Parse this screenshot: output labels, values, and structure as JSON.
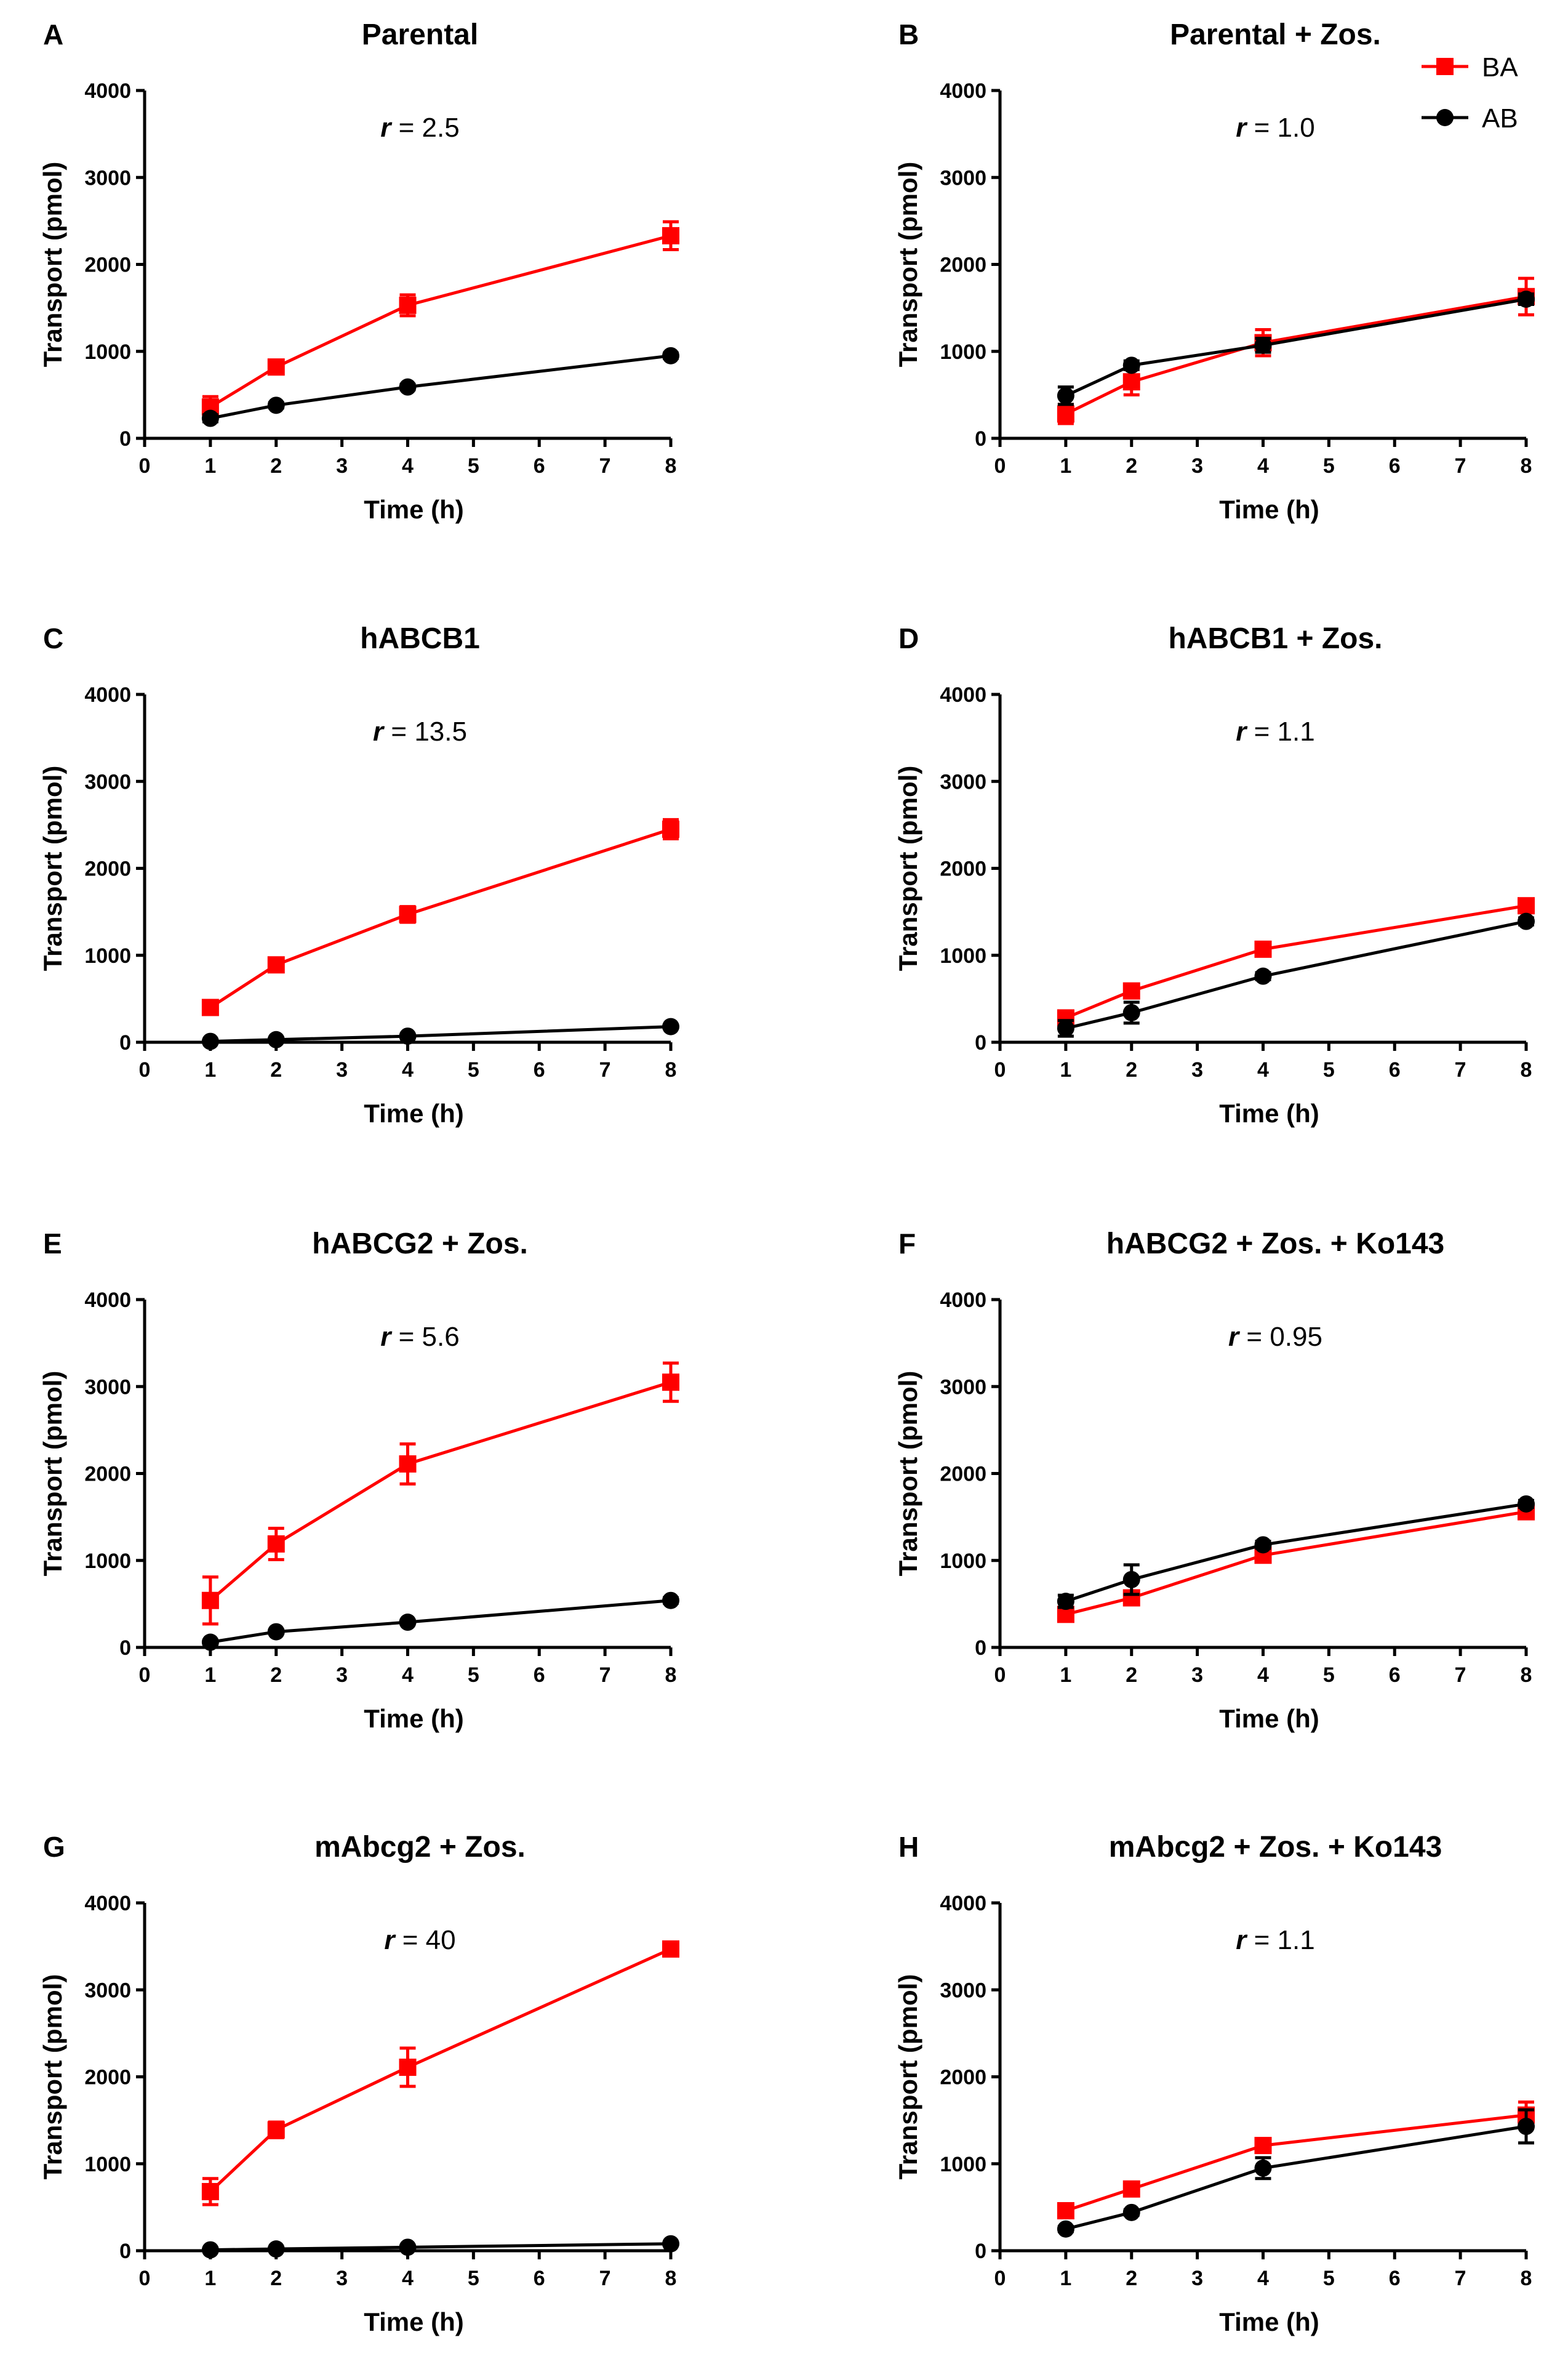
{
  "figure": {
    "legend": [
      {
        "name": "BA",
        "marker": "square",
        "color": "#ff0000"
      },
      {
        "name": "AB",
        "marker": "circle",
        "color": "#000000"
      }
    ],
    "ratio_prefix": "r",
    "ratio_eq": " = "
  },
  "chart_data": [
    {
      "panel": "A",
      "type": "line",
      "title": "Parental",
      "ratio": "2.5",
      "xlabel": "Time (h)",
      "ylabel": "Transport (pmol)",
      "xlim": [
        0,
        8
      ],
      "ylim": [
        0,
        4000
      ],
      "xticks": [
        0,
        1,
        2,
        3,
        4,
        5,
        6,
        7,
        8
      ],
      "yticks": [
        0,
        1000,
        2000,
        3000,
        4000
      ],
      "x": [
        1,
        2,
        4,
        8
      ],
      "series": [
        {
          "name": "BA",
          "values": [
            360,
            820,
            1530,
            2330
          ],
          "errors": [
            120,
            80,
            120,
            160
          ]
        },
        {
          "name": "AB",
          "values": [
            230,
            380,
            590,
            950
          ],
          "errors": [
            40,
            30,
            30,
            30
          ]
        }
      ]
    },
    {
      "panel": "B",
      "type": "line",
      "title": "Parental + Zos.",
      "ratio": "1.0",
      "xlabel": "Time (h)",
      "ylabel": "Transport (pmol)",
      "xlim": [
        0,
        8
      ],
      "ylim": [
        0,
        4000
      ],
      "xticks": [
        0,
        1,
        2,
        3,
        4,
        5,
        6,
        7,
        8
      ],
      "yticks": [
        0,
        1000,
        2000,
        3000,
        4000
      ],
      "x": [
        1,
        2,
        4,
        8
      ],
      "series": [
        {
          "name": "BA",
          "values": [
            280,
            650,
            1100,
            1630
          ],
          "errors": [
            110,
            150,
            150,
            210
          ]
        },
        {
          "name": "AB",
          "values": [
            490,
            840,
            1070,
            1600
          ],
          "errors": [
            100,
            50,
            80,
            60
          ]
        }
      ]
    },
    {
      "panel": "C",
      "type": "line",
      "title": "hABCB1",
      "ratio": "13.5",
      "xlabel": "Time (h)",
      "ylabel": "Transport (pmol)",
      "xlim": [
        0,
        8
      ],
      "ylim": [
        0,
        4000
      ],
      "xticks": [
        0,
        1,
        2,
        3,
        4,
        5,
        6,
        7,
        8
      ],
      "yticks": [
        0,
        1000,
        2000,
        3000,
        4000
      ],
      "x": [
        1,
        2,
        4,
        8
      ],
      "series": [
        {
          "name": "BA",
          "values": [
            400,
            890,
            1470,
            2450
          ],
          "errors": [
            60,
            60,
            90,
            110
          ]
        },
        {
          "name": "AB",
          "values": [
            10,
            30,
            70,
            180
          ],
          "errors": [
            10,
            10,
            10,
            20
          ]
        }
      ]
    },
    {
      "panel": "D",
      "type": "line",
      "title": "hABCB1 + Zos.",
      "ratio": "1.1",
      "xlabel": "Time (h)",
      "ylabel": "Transport (pmol)",
      "xlim": [
        0,
        8
      ],
      "ylim": [
        0,
        4000
      ],
      "xticks": [
        0,
        1,
        2,
        3,
        4,
        5,
        6,
        7,
        8
      ],
      "yticks": [
        0,
        1000,
        2000,
        3000,
        4000
      ],
      "x": [
        1,
        2,
        4,
        8
      ],
      "series": [
        {
          "name": "BA",
          "values": [
            280,
            590,
            1070,
            1570
          ],
          "errors": [
            40,
            40,
            40,
            50
          ]
        },
        {
          "name": "AB",
          "values": [
            160,
            340,
            760,
            1390
          ],
          "errors": [
            90,
            120,
            40,
            40
          ]
        }
      ]
    },
    {
      "panel": "E",
      "type": "line",
      "title": "hABCG2 + Zos.",
      "ratio": "5.6",
      "xlabel": "Time (h)",
      "ylabel": "Transport (pmol)",
      "xlim": [
        0,
        8
      ],
      "ylim": [
        0,
        4000
      ],
      "xticks": [
        0,
        1,
        2,
        3,
        4,
        5,
        6,
        7,
        8
      ],
      "yticks": [
        0,
        1000,
        2000,
        3000,
        4000
      ],
      "x": [
        1,
        2,
        4,
        8
      ],
      "series": [
        {
          "name": "BA",
          "values": [
            540,
            1190,
            2110,
            3050
          ],
          "errors": [
            270,
            180,
            230,
            220
          ]
        },
        {
          "name": "AB",
          "values": [
            60,
            180,
            290,
            540
          ],
          "errors": [
            20,
            20,
            20,
            30
          ]
        }
      ]
    },
    {
      "panel": "F",
      "type": "line",
      "title": "hABCG2 + Zos. + Ko143",
      "ratio": "0.95",
      "xlabel": "Time (h)",
      "ylabel": "Transport (pmol)",
      "xlim": [
        0,
        8
      ],
      "ylim": [
        0,
        4000
      ],
      "xticks": [
        0,
        1,
        2,
        3,
        4,
        5,
        6,
        7,
        8
      ],
      "yticks": [
        0,
        1000,
        2000,
        3000,
        4000
      ],
      "x": [
        1,
        2,
        4,
        8
      ],
      "series": [
        {
          "name": "BA",
          "values": [
            380,
            570,
            1060,
            1560
          ],
          "errors": [
            40,
            40,
            70,
            70
          ]
        },
        {
          "name": "AB",
          "values": [
            530,
            780,
            1180,
            1650
          ],
          "errors": [
            70,
            170,
            40,
            40
          ]
        }
      ]
    },
    {
      "panel": "G",
      "type": "line",
      "title": "mAbcg2 + Zos.",
      "ratio": "40",
      "xlabel": "Time (h)",
      "ylabel": "Transport (pmol)",
      "xlim": [
        0,
        8
      ],
      "ylim": [
        0,
        4000
      ],
      "xticks": [
        0,
        1,
        2,
        3,
        4,
        5,
        6,
        7,
        8
      ],
      "yticks": [
        0,
        1000,
        2000,
        3000,
        4000
      ],
      "x": [
        1,
        2,
        4,
        8
      ],
      "series": [
        {
          "name": "BA",
          "values": [
            680,
            1390,
            2110,
            3470
          ],
          "errors": [
            150,
            90,
            220,
            80
          ]
        },
        {
          "name": "AB",
          "values": [
            10,
            20,
            40,
            80
          ],
          "errors": [
            5,
            5,
            10,
            10
          ]
        }
      ]
    },
    {
      "panel": "H",
      "type": "line",
      "title": "mAbcg2 + Zos. + Ko143",
      "ratio": "1.1",
      "xlabel": "Time (h)",
      "ylabel": "Transport (pmol)",
      "xlim": [
        0,
        8
      ],
      "ylim": [
        0,
        4000
      ],
      "xticks": [
        0,
        1,
        2,
        3,
        4,
        5,
        6,
        7,
        8
      ],
      "yticks": [
        0,
        1000,
        2000,
        3000,
        4000
      ],
      "x": [
        1,
        2,
        4,
        8
      ],
      "series": [
        {
          "name": "BA",
          "values": [
            460,
            710,
            1210,
            1560
          ],
          "errors": [
            40,
            40,
            60,
            150
          ]
        },
        {
          "name": "AB",
          "values": [
            250,
            440,
            950,
            1430
          ],
          "errors": [
            30,
            30,
            120,
            190
          ]
        }
      ]
    }
  ]
}
